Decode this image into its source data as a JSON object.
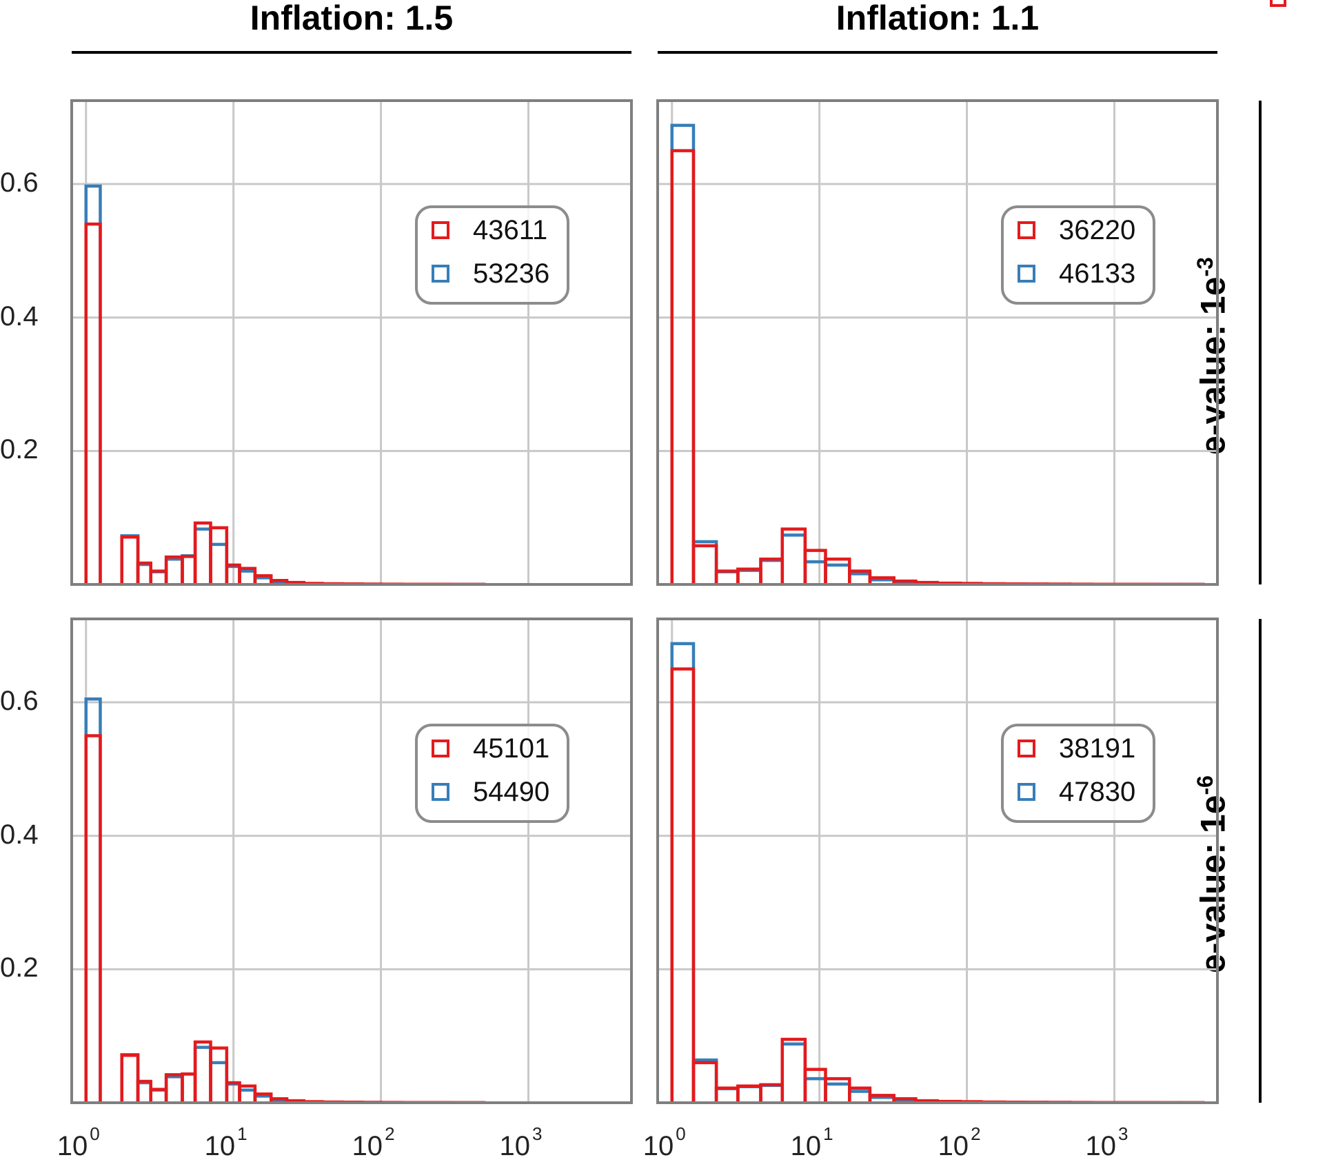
{
  "colors": {
    "red": "#e41a1c",
    "blue": "#377eb8",
    "grid": "#c8c8c8",
    "frame": "#7f7f7f"
  },
  "chart_data": {
    "type": "histogram",
    "x_scale": "log",
    "xlim": [
      0.8,
      5000
    ],
    "ylim": [
      0,
      0.725
    ],
    "grid": true,
    "legend_position": "upper-right (inside each panel)",
    "x_ticks": [
      {
        "base": "10",
        "exp": "0",
        "value": 1
      },
      {
        "base": "10",
        "exp": "1",
        "value": 10
      },
      {
        "base": "10",
        "exp": "2",
        "value": 100
      },
      {
        "base": "10",
        "exp": "3",
        "value": 1000
      }
    ],
    "y_ticks": [
      {
        "label": "0.2",
        "value": 0.2
      },
      {
        "label": "0.4",
        "value": 0.4
      },
      {
        "label": "0.6",
        "value": 0.6
      }
    ],
    "col_titles": [
      "Inflation: 1.5",
      "Inflation: 1.1"
    ],
    "row_titles": [
      {
        "text": "e-value: 1e",
        "exp": "-3"
      },
      {
        "text": "e-value: 1e",
        "exp": "-6"
      }
    ],
    "panels": [
      {
        "row": 0,
        "col": 0,
        "bin_edges": [
          1,
          1.25,
          1.75,
          2.25,
          2.75,
          3.5,
          4.5,
          5.5,
          7,
          9,
          11,
          14,
          18,
          23,
          30,
          40,
          55,
          75,
          100,
          140,
          200,
          300,
          500
        ],
        "series": [
          {
            "name": "43611",
            "color": "red",
            "values": [
              0.54,
              0,
              0.071,
              0.032,
              0.02,
              0.041,
              0.042,
              0.092,
              0.085,
              0.029,
              0.024,
              0.013,
              0.006,
              0.003,
              0.0015,
              0.001,
              0.0008,
              0.0005,
              0.0004,
              0.0003,
              0.0002,
              0.0001
            ]
          },
          {
            "name": "53236",
            "color": "blue",
            "values": [
              0.597,
              0,
              0.073,
              0.03,
              0.019,
              0.038,
              0.043,
              0.083,
              0.06,
              0.027,
              0.02,
              0.01,
              0.004,
              0.002,
              0.0012,
              0.0008,
              0.0006,
              0.0004,
              0.0003,
              0.0002,
              0.0001,
              0.0001
            ]
          }
        ]
      },
      {
        "row": 0,
        "col": 1,
        "bin_edges": [
          1,
          1.4,
          2,
          2.8,
          4,
          5.6,
          8,
          11,
          16,
          22,
          32,
          45,
          63,
          90,
          125,
          180,
          250,
          350,
          500,
          700,
          1000,
          1400,
          2000,
          2800,
          4000
        ],
        "series": [
          {
            "name": "36220",
            "color": "red",
            "values": [
              0.65,
              0.058,
              0.02,
              0.023,
              0.038,
              0.083,
              0.051,
              0.038,
              0.02,
              0.01,
              0.005,
              0.003,
              0.002,
              0.0015,
              0.001,
              0.0008,
              0.0006,
              0.0005,
              0.0004,
              0.0003,
              0.0002,
              0.0002,
              0.0001,
              0.0001
            ]
          },
          {
            "name": "46133",
            "color": "blue",
            "values": [
              0.688,
              0.064,
              0.019,
              0.021,
              0.036,
              0.074,
              0.034,
              0.029,
              0.016,
              0.007,
              0.004,
              0.0025,
              0.0015,
              0.001,
              0.0008,
              0.0006,
              0.0005,
              0.0004,
              0.0003,
              0.0002,
              0.0002,
              0.0001,
              0.0001,
              0.0001
            ]
          }
        ]
      },
      {
        "row": 1,
        "col": 0,
        "bin_edges": [
          1,
          1.25,
          1.75,
          2.25,
          2.75,
          3.5,
          4.5,
          5.5,
          7,
          9,
          11,
          14,
          18,
          23,
          30,
          40,
          55,
          75,
          100,
          140,
          200,
          300,
          500
        ],
        "series": [
          {
            "name": "45101",
            "color": "red",
            "values": [
              0.55,
              0,
              0.071,
              0.032,
              0.02,
              0.042,
              0.043,
              0.091,
              0.082,
              0.03,
              0.025,
              0.013,
              0.006,
              0.003,
              0.0015,
              0.001,
              0.0008,
              0.0005,
              0.0004,
              0.0003,
              0.0002,
              0.0001
            ]
          },
          {
            "name": "54490",
            "color": "blue",
            "values": [
              0.605,
              0,
              0.072,
              0.03,
              0.019,
              0.039,
              0.043,
              0.083,
              0.06,
              0.028,
              0.019,
              0.01,
              0.004,
              0.002,
              0.0012,
              0.0008,
              0.0006,
              0.0004,
              0.0003,
              0.0002,
              0.0001,
              0.0001
            ]
          }
        ]
      },
      {
        "row": 1,
        "col": 1,
        "bin_edges": [
          1,
          1.4,
          2,
          2.8,
          4,
          5.6,
          8,
          11,
          16,
          22,
          32,
          45,
          63,
          90,
          125,
          180,
          250,
          350,
          500,
          700,
          1000,
          1400,
          2000,
          2800,
          4000
        ],
        "series": [
          {
            "name": "38191",
            "color": "red",
            "values": [
              0.65,
              0.06,
              0.022,
              0.025,
              0.027,
              0.095,
              0.05,
              0.036,
              0.022,
              0.011,
              0.006,
              0.003,
              0.002,
              0.0015,
              0.001,
              0.0008,
              0.0006,
              0.0005,
              0.0004,
              0.0003,
              0.0002,
              0.0002,
              0.0001,
              0.0001
            ]
          },
          {
            "name": "47830",
            "color": "blue",
            "values": [
              0.688,
              0.064,
              0.021,
              0.024,
              0.026,
              0.088,
              0.036,
              0.028,
              0.017,
              0.008,
              0.004,
              0.0025,
              0.0015,
              0.001,
              0.0008,
              0.0006,
              0.0005,
              0.0004,
              0.0003,
              0.0002,
              0.0002,
              0.0001,
              0.0001,
              0.0001
            ]
          }
        ]
      }
    ]
  }
}
